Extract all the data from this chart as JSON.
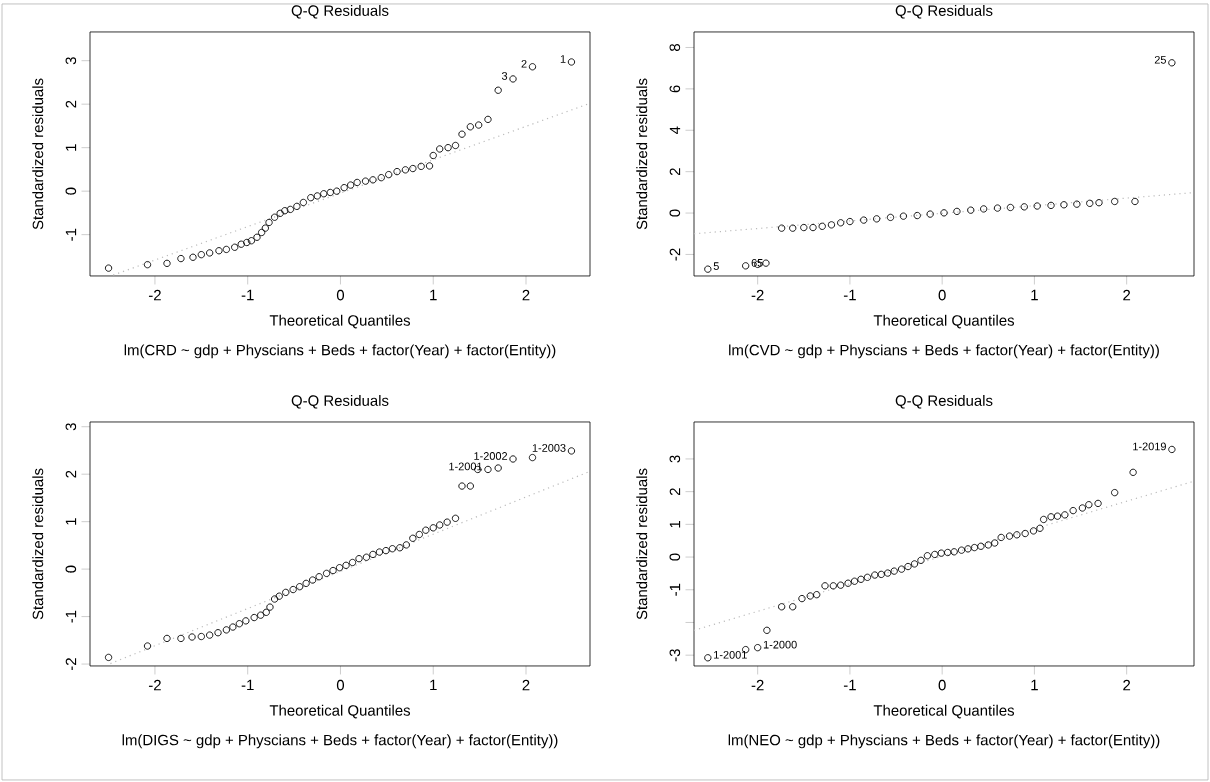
{
  "chart_data": [
    {
      "type": "scatter",
      "title": "Q-Q Residuals",
      "xlabel": "Theoretical Quantiles",
      "ylabel": "Standardized residuals",
      "xlim": [
        -2.7,
        2.69
      ],
      "ylim": [
        -1.95,
        3.66
      ],
      "xticks": [
        -2,
        -1,
        0,
        1,
        2
      ],
      "yticks": [
        -1,
        0,
        1,
        2,
        3
      ],
      "marker": "circle",
      "annotations": [
        "lm(CRD ~ gdp + Physcians + Beds + factor(Year) + factor(Entity))",
        {
          "text": "3",
          "x": 1.86,
          "y": 2.58
        },
        {
          "text": "2",
          "x": 2.07,
          "y": 2.86
        },
        {
          "text": "1",
          "x": 2.49,
          "y": 2.97
        }
      ],
      "series": [
        {
          "color": "#000000",
          "x": [
            -2.5,
            -2.08,
            -1.87,
            -1.72,
            -1.59,
            -1.5,
            -1.41,
            -1.31,
            -1.23,
            -1.14,
            -1.07,
            -1.01,
            -0.96,
            -0.9,
            -0.85,
            -0.81,
            -0.77,
            -0.71,
            -0.65,
            -0.6,
            -0.54,
            -0.47,
            -0.4,
            -0.32,
            -0.25,
            -0.18,
            -0.11,
            -0.04,
            0.04,
            0.11,
            0.18,
            0.27,
            0.35,
            0.44,
            0.52,
            0.61,
            0.7,
            0.78,
            0.87,
            0.96,
            1.0,
            1.07,
            1.16,
            1.24,
            1.31,
            1.4,
            1.49,
            1.59,
            1.7,
            1.86,
            2.07,
            2.49
          ],
          "values": [
            -1.77,
            -1.69,
            -1.66,
            -1.55,
            -1.52,
            -1.46,
            -1.42,
            -1.37,
            -1.34,
            -1.29,
            -1.22,
            -1.18,
            -1.14,
            -1.06,
            -0.95,
            -0.85,
            -0.72,
            -0.6,
            -0.51,
            -0.45,
            -0.42,
            -0.35,
            -0.26,
            -0.15,
            -0.11,
            -0.06,
            -0.03,
            0.0,
            0.08,
            0.14,
            0.2,
            0.23,
            0.26,
            0.31,
            0.38,
            0.45,
            0.49,
            0.52,
            0.57,
            0.58,
            0.82,
            0.97,
            1.0,
            1.05,
            1.31,
            1.48,
            1.52,
            1.65,
            2.32,
            2.58,
            2.86,
            2.97
          ]
        },
        {
          "type": "line",
          "color": "#bbbbbb",
          "line_style": "dotted",
          "marker": "none",
          "x": [
            -2.45,
            2.69
          ],
          "values": [
            -1.93,
            2.02
          ]
        }
      ]
    },
    {
      "type": "scatter",
      "title": "Q-Q Residuals",
      "xlabel": "Theoretical Quantiles",
      "ylabel": "Standardized residuals",
      "xlim": [
        -2.69,
        2.73
      ],
      "ylim": [
        -3.04,
        8.75
      ],
      "xticks": [
        -2,
        -1,
        0,
        1,
        2
      ],
      "yticks": [
        -2,
        0,
        2,
        4,
        6,
        8
      ],
      "marker": "circle",
      "annotations": [
        "lm(CVD ~ gdp + Physcians + Beds + factor(Year) + factor(Entity))",
        {
          "text": "5",
          "x": -2.54,
          "y": -2.71
        },
        {
          "text": "65",
          "x": -2.13,
          "y": -2.55
        },
        {
          "text": "25",
          "x": 2.49,
          "y": 7.26
        }
      ],
      "series": [
        {
          "color": "#000000",
          "x": [
            -2.54,
            -2.13,
            -2.0,
            -1.91,
            -1.74,
            -1.62,
            -1.5,
            -1.4,
            -1.3,
            -1.2,
            -1.1,
            -1.0,
            -0.85,
            -0.71,
            -0.56,
            -0.42,
            -0.27,
            -0.13,
            0.02,
            0.16,
            0.31,
            0.45,
            0.6,
            0.74,
            0.89,
            1.03,
            1.18,
            1.32,
            1.46,
            1.6,
            1.7,
            1.87,
            2.09,
            2.49
          ],
          "values": [
            -2.71,
            -2.55,
            -2.48,
            -2.42,
            -0.73,
            -0.73,
            -0.7,
            -0.7,
            -0.64,
            -0.57,
            -0.47,
            -0.41,
            -0.34,
            -0.28,
            -0.21,
            -0.15,
            -0.12,
            -0.05,
            0.01,
            0.08,
            0.14,
            0.2,
            0.24,
            0.27,
            0.3,
            0.34,
            0.37,
            0.4,
            0.43,
            0.47,
            0.5,
            0.56,
            0.56,
            7.26
          ]
        },
        {
          "type": "line",
          "color": "#bbbbbb",
          "line_style": "dotted",
          "marker": "none",
          "x": [
            -2.69,
            2.73
          ],
          "values": [
            -1.0,
            0.99
          ]
        }
      ]
    },
    {
      "type": "scatter",
      "title": "Q-Q Residuals",
      "xlabel": "Theoretical Quantiles",
      "ylabel": "Standardized residuals",
      "xlim": [
        -2.7,
        2.69
      ],
      "ylim": [
        -2.04,
        3.1
      ],
      "xticks": [
        -2,
        -1,
        0,
        1,
        2
      ],
      "yticks": [
        -2,
        -1,
        0,
        1,
        2,
        3
      ],
      "marker": "circle",
      "annotations": [
        "lm(DIGS ~ gdp + Physcians + Beds + factor(Year) + factor(Entity))",
        {
          "text": "1-2001",
          "x": 1.59,
          "y": 2.1
        },
        {
          "text": "1-2002",
          "x": 1.86,
          "y": 2.32
        },
        {
          "text": "1-2003",
          "x": 2.49,
          "y": 2.49
        }
      ],
      "series": [
        {
          "color": "#000000",
          "x": [
            -2.5,
            -2.08,
            -1.87,
            -1.72,
            -1.6,
            -1.5,
            -1.41,
            -1.32,
            -1.23,
            -1.16,
            -1.09,
            -1.02,
            -0.93,
            -0.86,
            -0.8,
            -0.76,
            -0.71,
            -0.66,
            -0.59,
            -0.51,
            -0.44,
            -0.37,
            -0.3,
            -0.23,
            -0.15,
            -0.08,
            -0.01,
            0.06,
            0.13,
            0.2,
            0.28,
            0.35,
            0.42,
            0.49,
            0.56,
            0.64,
            0.71,
            0.78,
            0.85,
            0.92,
            1.0,
            1.07,
            1.15,
            1.24,
            1.31,
            1.4,
            1.48,
            1.59,
            1.7,
            1.86,
            2.07,
            2.49
          ],
          "values": [
            -1.86,
            -1.62,
            -1.46,
            -1.46,
            -1.43,
            -1.42,
            -1.39,
            -1.34,
            -1.28,
            -1.22,
            -1.15,
            -1.09,
            -1.02,
            -0.97,
            -0.91,
            -0.8,
            -0.63,
            -0.57,
            -0.49,
            -0.43,
            -0.37,
            -0.3,
            -0.23,
            -0.16,
            -0.09,
            -0.03,
            0.03,
            0.08,
            0.14,
            0.22,
            0.25,
            0.31,
            0.36,
            0.39,
            0.43,
            0.45,
            0.51,
            0.65,
            0.73,
            0.82,
            0.87,
            0.93,
            0.99,
            1.07,
            1.75,
            1.75,
            2.1,
            2.1,
            2.13,
            2.32,
            2.35,
            2.49
          ]
        },
        {
          "type": "line",
          "color": "#bbbbbb",
          "line_style": "dotted",
          "marker": "none",
          "x": [
            -2.48,
            2.69
          ],
          "values": [
            -1.99,
            2.06
          ]
        }
      ]
    },
    {
      "type": "scatter",
      "title": "Q-Q Residuals",
      "xlabel": "Theoretical Quantiles",
      "ylabel": "Standardized residuals",
      "xlim": [
        -2.69,
        2.73
      ],
      "ylim": [
        -3.33,
        4.13
      ],
      "xticks": [
        -2,
        -1,
        0,
        1,
        2
      ],
      "yticks": [
        -3,
        {
          "value": -2,
          "label": null
        },
        -1,
        0,
        1,
        2,
        3
      ],
      "marker": "circle",
      "annotations": [
        "lm(NEO ~ gdp + Physcians + Beds + factor(Year) + factor(Entity))",
        {
          "text": "1-2001",
          "x": -2.54,
          "y": -3.08
        },
        {
          "text": "1-2000",
          "x": -2.0,
          "y": -2.77
        },
        {
          "text": "1-2019",
          "x": 2.49,
          "y": 3.29
        }
      ],
      "series": [
        {
          "color": "#000000",
          "x": [
            -2.54,
            -2.13,
            -2.0,
            -1.9,
            -1.74,
            -1.62,
            -1.52,
            -1.43,
            -1.36,
            -1.27,
            -1.18,
            -1.1,
            -1.02,
            -0.95,
            -0.88,
            -0.81,
            -0.73,
            -0.66,
            -0.59,
            -0.52,
            -0.44,
            -0.37,
            -0.3,
            -0.23,
            -0.16,
            -0.08,
            -0.01,
            0.06,
            0.13,
            0.21,
            0.28,
            0.35,
            0.42,
            0.5,
            0.57,
            0.64,
            0.73,
            0.81,
            0.9,
            0.99,
            1.06,
            1.1,
            1.18,
            1.25,
            1.33,
            1.42,
            1.52,
            1.59,
            1.69,
            1.87,
            2.07,
            2.49
          ],
          "values": [
            -3.08,
            -2.83,
            -2.77,
            -2.24,
            -1.52,
            -1.52,
            -1.27,
            -1.19,
            -1.15,
            -0.88,
            -0.88,
            -0.86,
            -0.8,
            -0.74,
            -0.68,
            -0.62,
            -0.55,
            -0.53,
            -0.49,
            -0.43,
            -0.37,
            -0.29,
            -0.21,
            -0.1,
            0.04,
            0.08,
            0.12,
            0.14,
            0.16,
            0.21,
            0.25,
            0.29,
            0.33,
            0.37,
            0.43,
            0.6,
            0.64,
            0.68,
            0.72,
            0.8,
            0.88,
            1.15,
            1.23,
            1.25,
            1.29,
            1.42,
            1.5,
            1.6,
            1.64,
            1.97,
            2.59,
            3.29
          ]
        },
        {
          "type": "line",
          "color": "#bbbbbb",
          "line_style": "dotted",
          "marker": "none",
          "x": [
            -2.69,
            2.73
          ],
          "values": [
            -2.24,
            2.32
          ]
        }
      ]
    }
  ]
}
